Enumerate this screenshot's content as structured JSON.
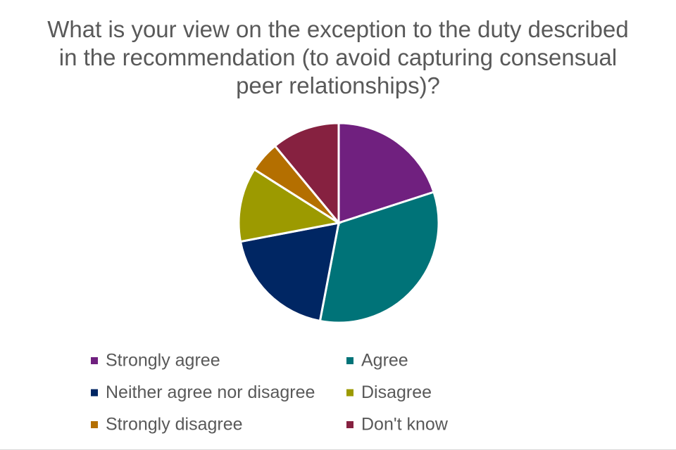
{
  "chart_data": {
    "type": "pie",
    "title": "What is your view on the exception to the duty described in the recommendation (to avoid capturing consensual peer relationships)?",
    "categories": [
      "Strongly agree",
      "Agree",
      "Neither agree nor disagree",
      "Disagree",
      "Strongly disagree",
      "Don't know"
    ],
    "values": [
      20,
      33,
      19,
      12,
      5,
      11
    ],
    "colors": [
      "#70207f",
      "#007378",
      "#002663",
      "#9c9a00",
      "#b46f00",
      "#862140"
    ],
    "legend": "bottom"
  }
}
